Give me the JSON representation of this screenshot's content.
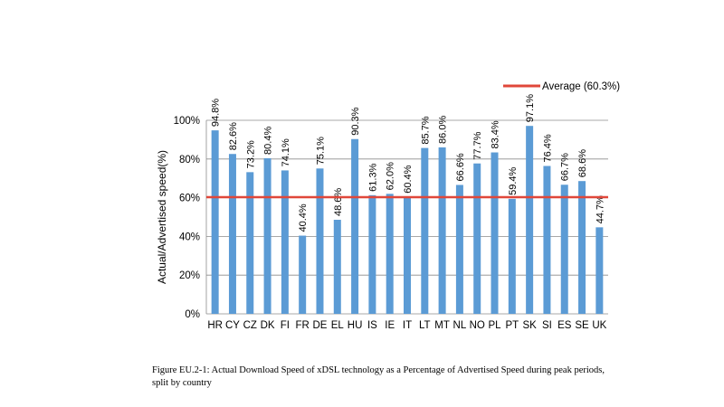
{
  "chart_data": {
    "type": "bar",
    "categories": [
      "HR",
      "CY",
      "CZ",
      "DK",
      "FI",
      "FR",
      "DE",
      "EL",
      "HU",
      "IS",
      "IE",
      "IT",
      "LT",
      "MT",
      "NL",
      "NO",
      "PL",
      "PT",
      "SK",
      "SI",
      "ES",
      "SE",
      "UK"
    ],
    "series": [
      {
        "name": "",
        "values": [
          94.8,
          82.6,
          73.2,
          80.4,
          74.1,
          40.4,
          75.1,
          48.6,
          90.3,
          61.3,
          62.0,
          60.4,
          85.7,
          86.0,
          66.6,
          77.7,
          83.4,
          59.4,
          97.1,
          76.4,
          66.7,
          68.6,
          44.7
        ],
        "labels": [
          "94.8%",
          "82.6%",
          "73.2%",
          "80.4%",
          "74.1%",
          "40.4%",
          "75.1%",
          "48.6%",
          "90.3%",
          "61.3%",
          "62.0%",
          "60.4%",
          "85.7%",
          "86.0%",
          "66.6%",
          "77.7%",
          "83.4%",
          "59.4%",
          "97.1%",
          "76.4%",
          "66.7%",
          "68.6%",
          "44.7%"
        ],
        "color": "#5b9bd5"
      }
    ],
    "average": {
      "value": 60.3,
      "label": "Average (60.3%)",
      "color": "#e0473a"
    },
    "title": "",
    "xlabel": "",
    "ylabel": "Actual/Advertised speed(%)",
    "ylim": [
      0,
      100
    ],
    "yticks": [
      "0%",
      "20%",
      "40%",
      "60%",
      "80%",
      "100%"
    ],
    "grid": true,
    "legend": "top-right"
  },
  "caption": "Figure EU.2-1: Actual Download Speed of xDSL technology as a Percentage of Advertised Speed during peak periods, split by country"
}
